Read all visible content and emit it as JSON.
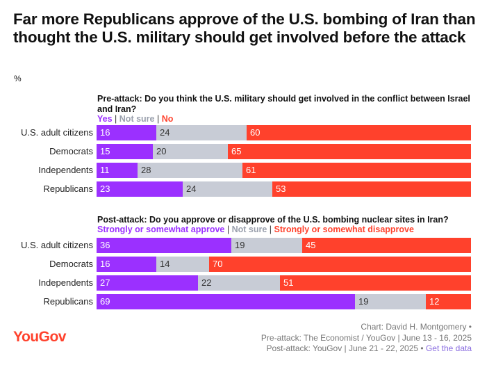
{
  "title": "Far more Republicans approve of the U.S. bombing of Iran than thought the U.S. military should get involved before the attack",
  "unit": "%",
  "colors": {
    "yes": "#9b30ff",
    "unsure": "#c8ccd6",
    "no": "#ff412c"
  },
  "chart_data": [
    {
      "type": "bar",
      "orientation": "horizontal",
      "stacked": true,
      "title": "Pre-attack: Do you think the U.S. military should get involved in the conflict between Israel and Iran?",
      "legend": [
        "Yes",
        "Not sure",
        "No"
      ],
      "categories": [
        "U.S. adult citizens",
        "Democrats",
        "Independents",
        "Republicans"
      ],
      "series": [
        {
          "name": "Yes",
          "values": [
            16,
            15,
            11,
            23
          ]
        },
        {
          "name": "Not sure",
          "values": [
            24,
            20,
            28,
            24
          ]
        },
        {
          "name": "No",
          "values": [
            60,
            65,
            61,
            53
          ]
        }
      ],
      "ylim": [
        0,
        100
      ]
    },
    {
      "type": "bar",
      "orientation": "horizontal",
      "stacked": true,
      "title": "Post-attack: Do you approve or disapprove of the U.S. bombing nuclear sites in Iran?",
      "legend": [
        "Strongly or somewhat approve",
        "Not sure",
        "Strongly or somewhat disapprove"
      ],
      "categories": [
        "U.S. adult citizens",
        "Democrats",
        "Independents",
        "Republicans"
      ],
      "series": [
        {
          "name": "Strongly or somewhat approve",
          "values": [
            36,
            16,
            27,
            69
          ]
        },
        {
          "name": "Not sure",
          "values": [
            19,
            14,
            22,
            19
          ]
        },
        {
          "name": "Strongly or somewhat disapprove",
          "values": [
            45,
            70,
            51,
            12
          ]
        }
      ],
      "ylim": [
        0,
        100
      ]
    }
  ],
  "footer": {
    "logo": "YouGov",
    "line1": "Chart: David H. Montgomery •",
    "line2": "Pre-attack: The Economist / YouGov | June 13 - 16, 2025",
    "line3_text": "Post-attack: YouGov | June 21 - 22, 2025 •",
    "line3_link": "Get the data"
  }
}
